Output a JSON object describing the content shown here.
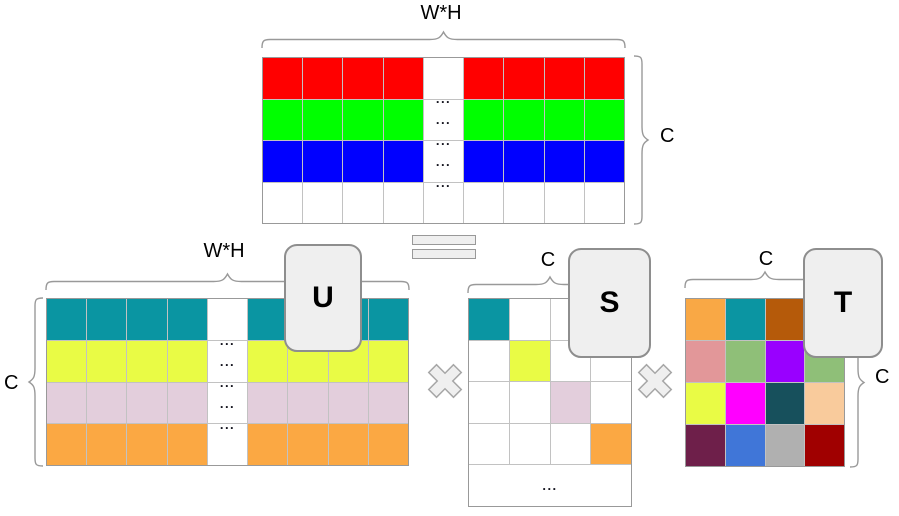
{
  "colors": {
    "brace": "#999999",
    "card_fill": "#EFEFEF",
    "card_stroke": "#8E8E8E",
    "operator_fill": "#EFEFEF",
    "operator_stroke": "#A6A6A6",
    "cell_border": "#C2C2C2",
    "grid_outline": "#999999",
    "white_cell": "#FFFFFF"
  },
  "rgb_matrix": {
    "label_top": "W*H",
    "label_right": "C",
    "columns": 9,
    "ellipsis_column_index": 4,
    "ellipsis": "...",
    "ellipsis_count": 5,
    "row_colors": [
      "#FF0000",
      "#00FF00",
      "#0000FF",
      "#FFFFFF"
    ]
  },
  "equals_operator": {
    "symbol": "="
  },
  "u_matrix": {
    "card_label": "U",
    "label_top": "W*H",
    "label_left": "C",
    "columns": 9,
    "ellipsis_column_index": 4,
    "ellipsis": "...",
    "ellipsis_count": 5,
    "row_colors": [
      "#0A95A2",
      "#E9FB45",
      "#E3CEDC",
      "#FBA843"
    ]
  },
  "multiply_operator": {
    "symbol": "×"
  },
  "s_matrix": {
    "card_label": "S",
    "label_top": "C",
    "size": 4,
    "diagonal_colors": [
      "#0A95A2",
      "#E9FB45",
      "#E3CEDC",
      "#FBA843"
    ],
    "empty_cell_color": "#FFFFFF",
    "ellipsis": "..."
  },
  "t_matrix": {
    "card_label": "T",
    "label_top": "C",
    "label_right": "C",
    "cell_colors": [
      [
        "#F9A845",
        "#0B95A2",
        "#B55A0A",
        "#FFFFFF"
      ],
      [
        "#E29799",
        "#8FBF78",
        "#9900FF",
        "#8FBF78"
      ],
      [
        "#E9FB45",
        "#FF00FF",
        "#17505C",
        "#F9CB9C"
      ],
      [
        "#6E1F4A",
        "#4076D8",
        "#B0B0B0",
        "#A00000"
      ]
    ]
  }
}
